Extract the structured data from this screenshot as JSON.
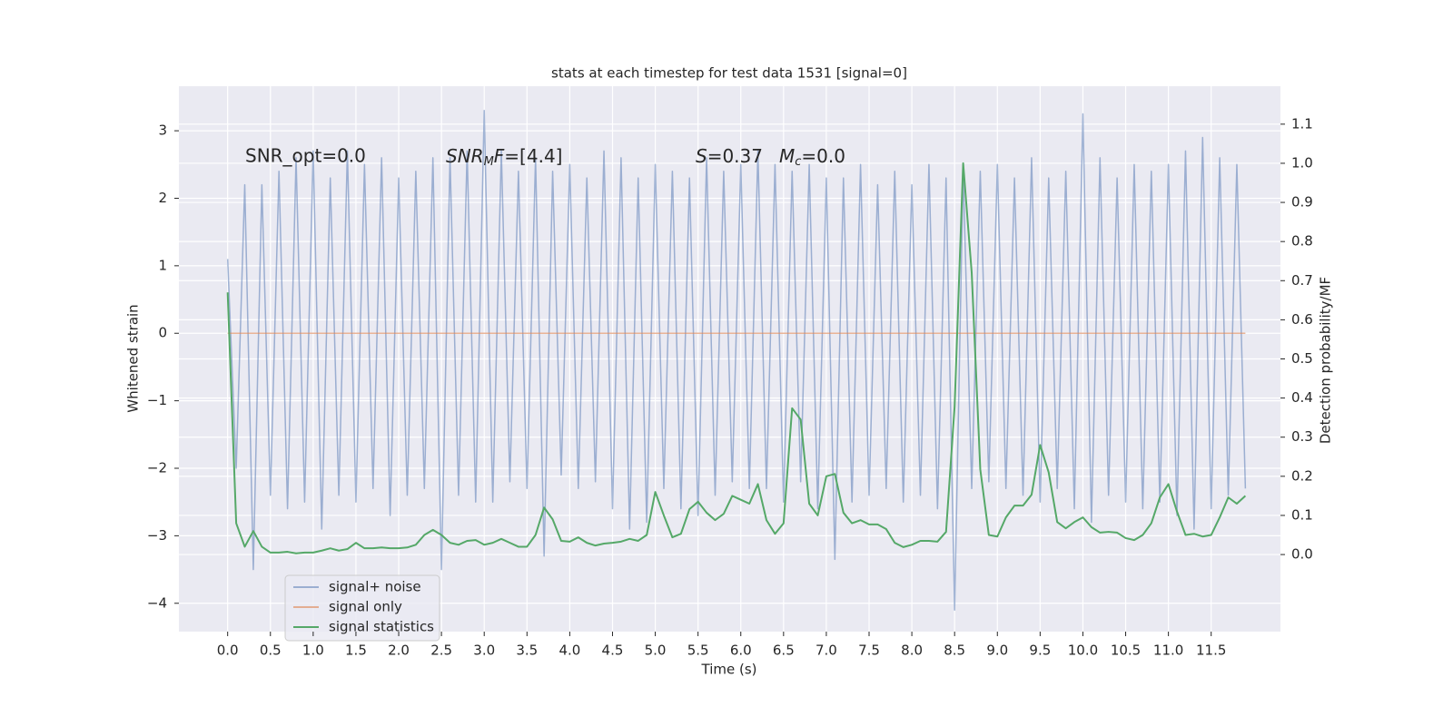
{
  "chart_data": {
    "type": "line",
    "title": "stats at each timestep for test data 1531 [signal=0]",
    "xlabel": "Time (s)",
    "ylabel": "Whitened strain",
    "y2label": "Detection probability/MF",
    "annotations": [
      {
        "text": "SNR_opt=0.0"
      },
      {
        "parts": [
          "SNR",
          "M",
          "F",
          "=[4.4]"
        ]
      },
      {
        "parts": [
          "S",
          "=0.37"
        ]
      },
      {
        "parts": [
          "M",
          "c",
          "=0.0"
        ]
      }
    ],
    "x": [
      0.0,
      0.1,
      0.2,
      0.3,
      0.4,
      0.5,
      0.6,
      0.7,
      0.8,
      0.9,
      1.0,
      1.1,
      1.2,
      1.3,
      1.4,
      1.5,
      1.6,
      1.7,
      1.8,
      1.9,
      2.0,
      2.1,
      2.2,
      2.3,
      2.4,
      2.5,
      2.6,
      2.7,
      2.8,
      2.9,
      3.0,
      3.1,
      3.2,
      3.3,
      3.4,
      3.5,
      3.6,
      3.7,
      3.8,
      3.9,
      4.0,
      4.1,
      4.2,
      4.3,
      4.4,
      4.5,
      4.6,
      4.7,
      4.8,
      4.9,
      5.0,
      5.1,
      5.2,
      5.3,
      5.4,
      5.5,
      5.6,
      5.7,
      5.8,
      5.9,
      6.0,
      6.1,
      6.2,
      6.3,
      6.4,
      6.5,
      6.6,
      6.7,
      6.8,
      6.9,
      7.0,
      7.1,
      7.2,
      7.3,
      7.4,
      7.5,
      7.6,
      7.7,
      7.8,
      7.9,
      8.0,
      8.1,
      8.2,
      8.3,
      8.4,
      8.5,
      8.6,
      8.7,
      8.8,
      8.9,
      9.0,
      9.1,
      9.2,
      9.3,
      9.4,
      9.5,
      9.6,
      9.7,
      9.8,
      9.9,
      10.0,
      10.1,
      10.2,
      10.3,
      10.4,
      10.5,
      10.6,
      10.7,
      10.8,
      10.9,
      11.0,
      11.1,
      11.2,
      11.3,
      11.4,
      11.5,
      11.6,
      11.7,
      11.8,
      11.9
    ],
    "series": [
      {
        "name": "signal+ noise",
        "color": "#4c72b0",
        "opacity": 0.5,
        "values": [
          1.1,
          -2.0,
          2.2,
          -3.5,
          2.2,
          -2.4,
          2.4,
          -2.6,
          2.6,
          -2.5,
          2.7,
          -2.9,
          2.3,
          -2.4,
          2.7,
          -2.5,
          2.5,
          -2.3,
          2.6,
          -2.7,
          2.3,
          -2.4,
          2.4,
          -2.3,
          2.6,
          -3.5,
          2.6,
          -2.4,
          2.7,
          -2.5,
          3.3,
          -2.5,
          2.7,
          -2.2,
          2.4,
          -2.3,
          2.6,
          -3.3,
          2.4,
          -2.1,
          2.5,
          -2.3,
          2.3,
          -2.2,
          2.7,
          -2.6,
          2.6,
          -2.9,
          2.3,
          -2.8,
          2.5,
          -2.3,
          2.4,
          -2.6,
          2.3,
          -2.7,
          2.6,
          -2.4,
          2.4,
          -2.2,
          2.5,
          -2.3,
          2.7,
          -2.3,
          2.5,
          -2.5,
          2.4,
          -2.2,
          2.5,
          -2.6,
          2.3,
          -3.35,
          2.3,
          -2.5,
          2.5,
          -2.4,
          2.2,
          -2.3,
          2.4,
          -2.5,
          2.2,
          -2.4,
          2.5,
          -2.6,
          2.3,
          -4.1,
          2.4,
          -2.3,
          2.4,
          -2.2,
          2.5,
          -2.3,
          2.3,
          -2.4,
          2.6,
          -2.5,
          2.3,
          -2.3,
          2.4,
          -2.6,
          3.25,
          -2.8,
          2.6,
          -2.4,
          2.3,
          -2.5,
          2.5,
          -2.6,
          2.4,
          -2.5,
          2.5,
          -2.7,
          2.7,
          -2.9,
          2.9,
          -2.6,
          2.6,
          -2.4,
          2.5,
          -2.3
        ]
      },
      {
        "name": "signal only",
        "color": "#dd8452",
        "opacity": 0.6,
        "x": [
          0.0,
          11.9
        ],
        "values": [
          0,
          0
        ]
      },
      {
        "name": "signal statistics",
        "color": "#55a868",
        "opacity": 1,
        "axis": "y2",
        "values": [
          0.67,
          0.08,
          0.02,
          0.06,
          0.02,
          0.005,
          0.005,
          0.007,
          0.003,
          0.005,
          0.005,
          0.01,
          0.016,
          0.01,
          0.014,
          0.03,
          0.016,
          0.016,
          0.018,
          0.016,
          0.016,
          0.018,
          0.025,
          0.05,
          0.063,
          0.05,
          0.03,
          0.025,
          0.035,
          0.037,
          0.025,
          0.03,
          0.04,
          0.03,
          0.02,
          0.02,
          0.05,
          0.12,
          0.09,
          0.035,
          0.033,
          0.044,
          0.03,
          0.023,
          0.028,
          0.03,
          0.033,
          0.04,
          0.035,
          0.05,
          0.16,
          0.1,
          0.044,
          0.053,
          0.116,
          0.135,
          0.107,
          0.088,
          0.104,
          0.15,
          0.14,
          0.13,
          0.18,
          0.088,
          0.053,
          0.08,
          0.374,
          0.345,
          0.13,
          0.1,
          0.2,
          0.206,
          0.107,
          0.08,
          0.088,
          0.077,
          0.077,
          0.065,
          0.03,
          0.019,
          0.025,
          0.035,
          0.035,
          0.033,
          0.058,
          0.378,
          1.0,
          0.72,
          0.218,
          0.05,
          0.046,
          0.095,
          0.125,
          0.125,
          0.153,
          0.28,
          0.21,
          0.083,
          0.067,
          0.083,
          0.095,
          0.07,
          0.056,
          0.058,
          0.056,
          0.042,
          0.037,
          0.05,
          0.08,
          0.146,
          0.18,
          0.11,
          0.05,
          0.053,
          0.046,
          0.05,
          0.095,
          0.146,
          0.13,
          0.15
        ]
      }
    ],
    "xlim": [
      -0.57,
      12.31
    ],
    "ylim": [
      -4.42,
      3.66
    ],
    "y2lim": [
      -0.197,
      1.197
    ],
    "xticks": [
      {
        "value": 0,
        "label": "0.0"
      },
      {
        "value": 0.5,
        "label": "0.5"
      },
      {
        "value": 1,
        "label": "1.0"
      },
      {
        "value": 1.5,
        "label": "1.5"
      },
      {
        "value": 2,
        "label": "2.0"
      },
      {
        "value": 2.5,
        "label": "2.5"
      },
      {
        "value": 3,
        "label": "3.0"
      },
      {
        "value": 3.5,
        "label": "3.5"
      },
      {
        "value": 4,
        "label": "4.0"
      },
      {
        "value": 4.5,
        "label": "4.5"
      },
      {
        "value": 5,
        "label": "5.0"
      },
      {
        "value": 5.5,
        "label": "5.5"
      },
      {
        "value": 6,
        "label": "6.0"
      },
      {
        "value": 6.5,
        "label": "6.5"
      },
      {
        "value": 7,
        "label": "7.0"
      },
      {
        "value": 7.5,
        "label": "7.5"
      },
      {
        "value": 8,
        "label": "8.0"
      },
      {
        "value": 8.5,
        "label": "8.5"
      },
      {
        "value": 9,
        "label": "9.0"
      },
      {
        "value": 9.5,
        "label": "9.5"
      },
      {
        "value": 10,
        "label": "10.0"
      },
      {
        "value": 10.5,
        "label": "10.5"
      },
      {
        "value": 11,
        "label": "11.0"
      },
      {
        "value": 11.5,
        "label": "11.5"
      }
    ],
    "yticks": [
      {
        "value": -4,
        "label": "−4"
      },
      {
        "value": -3,
        "label": "−3"
      },
      {
        "value": -2,
        "label": "−2"
      },
      {
        "value": -1,
        "label": "−1"
      },
      0,
      1,
      2,
      3
    ],
    "y2ticks": [
      {
        "value": 0,
        "label": "0.0"
      },
      {
        "value": 0.1,
        "label": "0.1"
      },
      {
        "value": 0.2,
        "label": "0.2"
      },
      {
        "value": 0.3,
        "label": "0.3"
      },
      {
        "value": 0.4,
        "label": "0.4"
      },
      {
        "value": 0.5,
        "label": "0.5"
      },
      {
        "value": 0.6,
        "label": "0.6"
      },
      {
        "value": 0.7,
        "label": "0.7"
      },
      {
        "value": 0.8,
        "label": "0.8"
      },
      {
        "value": 0.9,
        "label": "0.9"
      },
      {
        "value": 1,
        "label": "1.0"
      },
      {
        "value": 1.1,
        "label": "1.1"
      }
    ],
    "grid": true,
    "legend": "lower left",
    "background": "#eaeaf2"
  }
}
